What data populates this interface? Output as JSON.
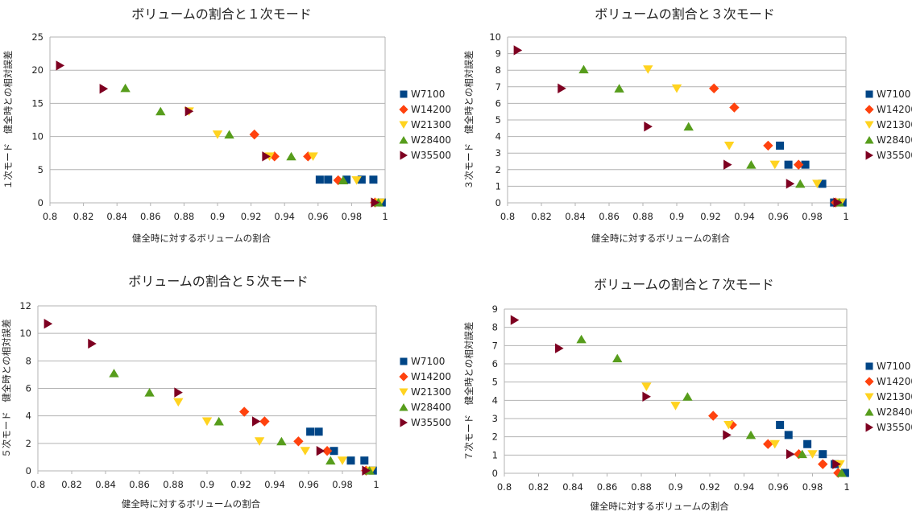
{
  "page": {
    "series_names": [
      "W7100",
      "W14200",
      "W21300",
      "W28400",
      "W35500"
    ],
    "series_colors": [
      "#004586",
      "#ff420e",
      "#ffd320",
      "#579d1c",
      "#7e0021"
    ],
    "marker_shapes": [
      "square",
      "diamond",
      "triangle-down",
      "triangle-up",
      "triangle-right"
    ]
  },
  "chart_data": [
    {
      "type": "scatter",
      "title": "ボリュームの割合と１次モード",
      "xlabel": "健全時に対するボリュームの割合",
      "ylabel": "１次モード　健全時との相対誤差",
      "xlim": [
        0.8,
        1
      ],
      "ylim": [
        0,
        25
      ],
      "xticks": [
        "0.8",
        "0.82",
        "0.84",
        "0.86",
        "0.88",
        "0.9",
        "0.92",
        "0.94",
        "0.96",
        "0.98",
        "1"
      ],
      "yticks": [
        "0",
        "5",
        "10",
        "15",
        "20",
        "25"
      ],
      "grid": true,
      "legend_position": "right",
      "series": [
        {
          "name": "W7100",
          "points": [
            [
              0.961,
              3.5
            ],
            [
              0.966,
              3.5
            ],
            [
              0.977,
              3.5
            ],
            [
              0.986,
              3.5
            ],
            [
              0.993,
              3.5
            ],
            [
              0.998,
              0.05
            ]
          ]
        },
        {
          "name": "W14200",
          "points": [
            [
              0.922,
              10.3
            ],
            [
              0.934,
              7.0
            ],
            [
              0.954,
              7.0
            ],
            [
              0.972,
              3.4
            ],
            [
              0.994,
              0.05
            ]
          ]
        },
        {
          "name": "W21300",
          "points": [
            [
              0.883,
              13.8
            ],
            [
              0.9,
              10.3
            ],
            [
              0.931,
              7.0
            ],
            [
              0.957,
              7.0
            ],
            [
              0.983,
              3.4
            ],
            [
              0.997,
              0.05
            ]
          ]
        },
        {
          "name": "W28400",
          "points": [
            [
              0.845,
              17.3
            ],
            [
              0.866,
              13.8
            ],
            [
              0.907,
              10.3
            ],
            [
              0.944,
              7.0
            ],
            [
              0.975,
              3.4
            ],
            [
              0.996,
              0.05
            ]
          ]
        },
        {
          "name": "W35500",
          "points": [
            [
              0.806,
              20.7
            ],
            [
              0.832,
              17.2
            ],
            [
              0.883,
              13.8
            ],
            [
              0.929,
              7.0
            ],
            [
              0.994,
              0.05
            ]
          ]
        }
      ]
    },
    {
      "type": "scatter",
      "title": "ボリュームの割合と３次モード",
      "xlabel": "健全時に対するボリュームの割合",
      "ylabel": "３次モード　健全時との相対誤差",
      "xlim": [
        0.8,
        1
      ],
      "ylim": [
        0,
        10
      ],
      "xticks": [
        "0.8",
        "0.82",
        "0.84",
        "0.86",
        "0.88",
        "0.9",
        "0.92",
        "0.94",
        "0.96",
        "0.98",
        "1"
      ],
      "yticks": [
        "0",
        "1",
        "2",
        "3",
        "4",
        "5",
        "6",
        "7",
        "8",
        "9",
        "10"
      ],
      "grid": true,
      "legend_position": "right",
      "series": [
        {
          "name": "W7100",
          "points": [
            [
              0.961,
              3.45
            ],
            [
              0.966,
              2.3
            ],
            [
              0.976,
              2.3
            ],
            [
              0.986,
              1.15
            ],
            [
              0.993,
              0.02
            ],
            [
              0.998,
              0.02
            ]
          ]
        },
        {
          "name": "W14200",
          "points": [
            [
              0.922,
              6.9
            ],
            [
              0.934,
              5.75
            ],
            [
              0.954,
              3.45
            ],
            [
              0.972,
              2.3
            ],
            [
              0.994,
              0.02
            ]
          ]
        },
        {
          "name": "W21300",
          "points": [
            [
              0.883,
              8.05
            ],
            [
              0.9,
              6.9
            ],
            [
              0.931,
              3.45
            ],
            [
              0.958,
              2.3
            ],
            [
              0.983,
              1.15
            ],
            [
              0.997,
              0.02
            ]
          ]
        },
        {
          "name": "W28400",
          "points": [
            [
              0.845,
              8.05
            ],
            [
              0.866,
              6.9
            ],
            [
              0.907,
              4.6
            ],
            [
              0.944,
              2.3
            ],
            [
              0.973,
              1.15
            ],
            [
              0.996,
              0.02
            ]
          ]
        },
        {
          "name": "W35500",
          "points": [
            [
              0.806,
              9.2
            ],
            [
              0.832,
              6.9
            ],
            [
              0.883,
              4.6
            ],
            [
              0.93,
              2.3
            ],
            [
              0.967,
              1.15
            ],
            [
              0.995,
              0.02
            ]
          ]
        }
      ]
    },
    {
      "type": "scatter",
      "title": "ボリュームの割合と５次モード",
      "xlabel": "健全時に対するボリュームの割合",
      "ylabel": "５次モード　健全時との相対誤差",
      "xlim": [
        0.8,
        1
      ],
      "ylim": [
        0,
        12
      ],
      "xticks": [
        "0.8",
        "0.82",
        "0.84",
        "0.86",
        "0.88",
        "0.9",
        "0.92",
        "0.94",
        "0.96",
        "0.98",
        "1"
      ],
      "yticks": [
        "0",
        "2",
        "4",
        "6",
        "8",
        "10",
        "12"
      ],
      "grid": true,
      "legend_position": "right",
      "series": [
        {
          "name": "W7100",
          "points": [
            [
              0.961,
              2.85
            ],
            [
              0.966,
              2.85
            ],
            [
              0.975,
              1.45
            ],
            [
              0.985,
              0.75
            ],
            [
              0.993,
              0.75
            ],
            [
              0.998,
              0.02
            ]
          ]
        },
        {
          "name": "W14200",
          "points": [
            [
              0.922,
              4.3
            ],
            [
              0.934,
              3.6
            ],
            [
              0.954,
              2.15
            ],
            [
              0.971,
              1.45
            ],
            [
              0.994,
              0.02
            ]
          ]
        },
        {
          "name": "W21300",
          "points": [
            [
              0.883,
              5.0
            ],
            [
              0.9,
              3.6
            ],
            [
              0.931,
              2.15
            ],
            [
              0.958,
              1.45
            ],
            [
              0.98,
              0.75
            ],
            [
              0.997,
              0.02
            ]
          ]
        },
        {
          "name": "W28400",
          "points": [
            [
              0.845,
              7.1
            ],
            [
              0.866,
              5.7
            ],
            [
              0.907,
              3.6
            ],
            [
              0.944,
              2.15
            ],
            [
              0.973,
              0.75
            ],
            [
              0.996,
              0.02
            ]
          ]
        },
        {
          "name": "W35500",
          "points": [
            [
              0.806,
              10.7
            ],
            [
              0.832,
              9.25
            ],
            [
              0.883,
              5.7
            ],
            [
              0.929,
              3.6
            ],
            [
              0.967,
              1.45
            ],
            [
              0.994,
              0.02
            ]
          ]
        }
      ]
    },
    {
      "type": "scatter",
      "title": "ボリュームの割合と７次モード",
      "xlabel": "健全時に対するボリュームの割合",
      "ylabel": "７次モード　健全時との相対誤差",
      "xlim": [
        0.8,
        1
      ],
      "ylim": [
        0,
        9
      ],
      "xticks": [
        "0.8",
        "0.82",
        "0.84",
        "0.86",
        "0.88",
        "0.9",
        "0.92",
        "0.94",
        "0.96",
        "0.98",
        "1"
      ],
      "yticks": [
        "0",
        "1",
        "2",
        "3",
        "4",
        "5",
        "6",
        "7",
        "8",
        "9"
      ],
      "grid": true,
      "legend_position": "right",
      "series": [
        {
          "name": "W7100",
          "points": [
            [
              0.961,
              2.65
            ],
            [
              0.966,
              2.1
            ],
            [
              0.977,
              1.6
            ],
            [
              0.986,
              1.05
            ],
            [
              0.993,
              0.5
            ],
            [
              0.999,
              0.02
            ]
          ]
        },
        {
          "name": "W14200",
          "points": [
            [
              0.922,
              3.15
            ],
            [
              0.933,
              2.65
            ],
            [
              0.954,
              1.6
            ],
            [
              0.972,
              1.05
            ],
            [
              0.986,
              0.5
            ],
            [
              0.995,
              0.02
            ]
          ]
        },
        {
          "name": "W21300",
          "points": [
            [
              0.883,
              4.75
            ],
            [
              0.9,
              3.7
            ],
            [
              0.931,
              2.65
            ],
            [
              0.958,
              1.6
            ],
            [
              0.98,
              1.05
            ],
            [
              0.996,
              0.5
            ]
          ]
        },
        {
          "name": "W28400",
          "points": [
            [
              0.845,
              7.35
            ],
            [
              0.866,
              6.3
            ],
            [
              0.907,
              4.2
            ],
            [
              0.944,
              2.1
            ],
            [
              0.974,
              1.05
            ],
            [
              0.997,
              0.02
            ]
          ]
        },
        {
          "name": "W35500",
          "points": [
            [
              0.806,
              8.4
            ],
            [
              0.832,
              6.85
            ],
            [
              0.883,
              4.2
            ],
            [
              0.93,
              2.1
            ],
            [
              0.967,
              1.05
            ],
            [
              0.994,
              0.5
            ]
          ]
        }
      ]
    }
  ]
}
